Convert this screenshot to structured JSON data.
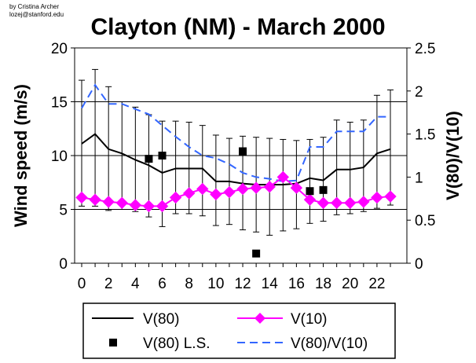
{
  "chart_data": {
    "type": "line",
    "title": "Clayton (NM) - March 2000",
    "credit": [
      "by Cristina Archer",
      "lozej@stanford.edu"
    ],
    "xlabel": "",
    "ylabel_left": "Wind speed (m/s)",
    "ylabel_right": "V(80)/V(10)",
    "xlim": [
      0,
      23
    ],
    "ylim_left": [
      0,
      20
    ],
    "ylim_right": [
      0,
      2.5
    ],
    "x_ticks": [
      0,
      2,
      4,
      6,
      8,
      10,
      12,
      14,
      16,
      18,
      20,
      22
    ],
    "x_tick_labels": [
      "0",
      "2",
      "4",
      "6",
      "8",
      "10",
      "12",
      "14",
      "16",
      "18",
      "20",
      "22"
    ],
    "y_left_ticks": [
      0,
      5,
      10,
      15,
      20
    ],
    "y_left_tick_labels": [
      "0",
      "5",
      "10",
      "15",
      "20"
    ],
    "y_right_ticks": [
      0,
      0.5,
      1,
      1.5,
      2,
      2.5
    ],
    "y_right_tick_labels": [
      "0",
      "0.5",
      "1",
      "1.5",
      "2",
      "2.5"
    ],
    "gridlines_left": [
      5,
      10,
      15
    ],
    "series": [
      {
        "name": "V(80)",
        "style": "line",
        "axis": "left",
        "color": "#000000",
        "x": [
          0,
          1,
          2,
          3,
          4,
          5,
          6,
          7,
          8,
          9,
          10,
          11,
          12,
          13,
          14,
          15,
          16,
          17,
          18,
          19,
          20,
          21,
          22,
          23
        ],
        "values": [
          11.1,
          12.0,
          10.6,
          10.2,
          9.6,
          9.1,
          8.4,
          8.8,
          8.8,
          8.8,
          7.6,
          7.6,
          7.4,
          7.3,
          7.3,
          7.3,
          7.4,
          7.9,
          7.7,
          8.7,
          8.7,
          8.9,
          10.2,
          10.6
        ],
        "error_low": [
          5.3,
          5.3,
          4.9,
          5.0,
          4.8,
          4.3,
          3.4,
          4.6,
          4.6,
          4.4,
          3.5,
          3.6,
          3.1,
          2.9,
          2.6,
          3.0,
          3.2,
          3.7,
          3.9,
          4.5,
          4.6,
          4.8,
          5.1,
          5.4
        ],
        "error_high": [
          17.0,
          18.0,
          16.4,
          15.0,
          14.5,
          13.8,
          13.2,
          13.2,
          13.1,
          12.8,
          11.9,
          11.6,
          11.8,
          11.7,
          11.6,
          11.5,
          11.4,
          11.5,
          11.7,
          13.3,
          13.1,
          13.3,
          15.6,
          16.1
        ]
      },
      {
        "name": "V(10)",
        "style": "diamond-line",
        "axis": "left",
        "color": "#ff00ff",
        "x": [
          0,
          1,
          2,
          3,
          4,
          5,
          6,
          7,
          8,
          9,
          10,
          11,
          12,
          13,
          14,
          15,
          16,
          17,
          18,
          19,
          20,
          21,
          22,
          23
        ],
        "values": [
          6.1,
          5.9,
          5.7,
          5.6,
          5.4,
          5.3,
          5.3,
          6.1,
          6.5,
          6.9,
          6.4,
          6.6,
          6.9,
          7.0,
          7.1,
          8.0,
          7.0,
          5.9,
          5.6,
          5.6,
          5.6,
          5.7,
          6.1,
          6.2
        ]
      },
      {
        "name": "V(80) L.S.",
        "style": "square-markers",
        "axis": "left",
        "color": "#000000",
        "x": [
          5,
          6,
          12,
          13,
          17,
          18
        ],
        "values": [
          9.7,
          10.0,
          10.4,
          0.9,
          6.7,
          6.8
        ]
      },
      {
        "name": "V(80)/V(10)",
        "style": "dashed-line",
        "axis": "right",
        "color": "#3366ff",
        "x": [
          0,
          1,
          2,
          3,
          4,
          5,
          6,
          7,
          8,
          9,
          10,
          11,
          12,
          13,
          14,
          15,
          16,
          17,
          18,
          19,
          20,
          21,
          22,
          23
        ],
        "values": [
          1.8,
          2.07,
          1.85,
          1.85,
          1.79,
          1.73,
          1.6,
          1.47,
          1.35,
          1.25,
          1.22,
          1.15,
          1.05,
          1.0,
          0.98,
          0.95,
          0.96,
          1.35,
          1.35,
          1.53,
          1.53,
          1.53,
          1.7,
          1.7
        ]
      }
    ],
    "legend": {
      "placement": "bottom",
      "entries": [
        {
          "label": "V(80)",
          "marker": "line",
          "color": "#000000"
        },
        {
          "label": "V(10)",
          "marker": "diamond-line",
          "color": "#ff00ff"
        },
        {
          "label": "V(80) L.S.",
          "marker": "square",
          "color": "#000000"
        },
        {
          "label": "V(80)/V(10)",
          "marker": "dashed-line",
          "color": "#3366ff"
        }
      ]
    }
  }
}
